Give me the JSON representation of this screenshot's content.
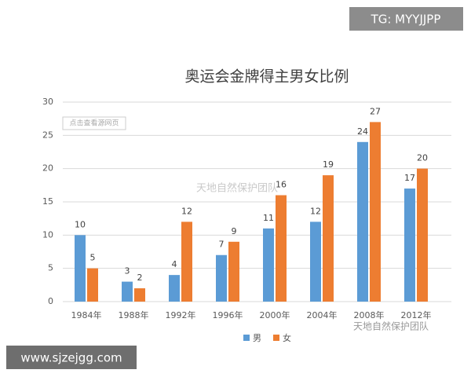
{
  "chart_data": {
    "type": "bar",
    "title": "奥运会金牌得主男女比例",
    "categories": [
      "1984年",
      "1988年",
      "1992年",
      "1996年",
      "2000年",
      "2004年",
      "2008年",
      "2012年"
    ],
    "series": [
      {
        "name": "男",
        "color": "#5b9bd5",
        "values": [
          10,
          3,
          4,
          7,
          11,
          12,
          24,
          17
        ]
      },
      {
        "name": "女",
        "color": "#ed7d31",
        "values": [
          5,
          2,
          12,
          9,
          16,
          19,
          27,
          20
        ]
      }
    ],
    "ylim": [
      0,
      30
    ],
    "yticks": [
      0,
      5,
      10,
      15,
      20,
      25,
      30
    ],
    "grid": true,
    "legend": "bottom"
  },
  "watermarks": [
    "TG: MYYJJPP",
    "www.sjzejgg.com",
    "点击查看源网页",
    "天地自然保护团队",
    "天地自然保护团队"
  ]
}
